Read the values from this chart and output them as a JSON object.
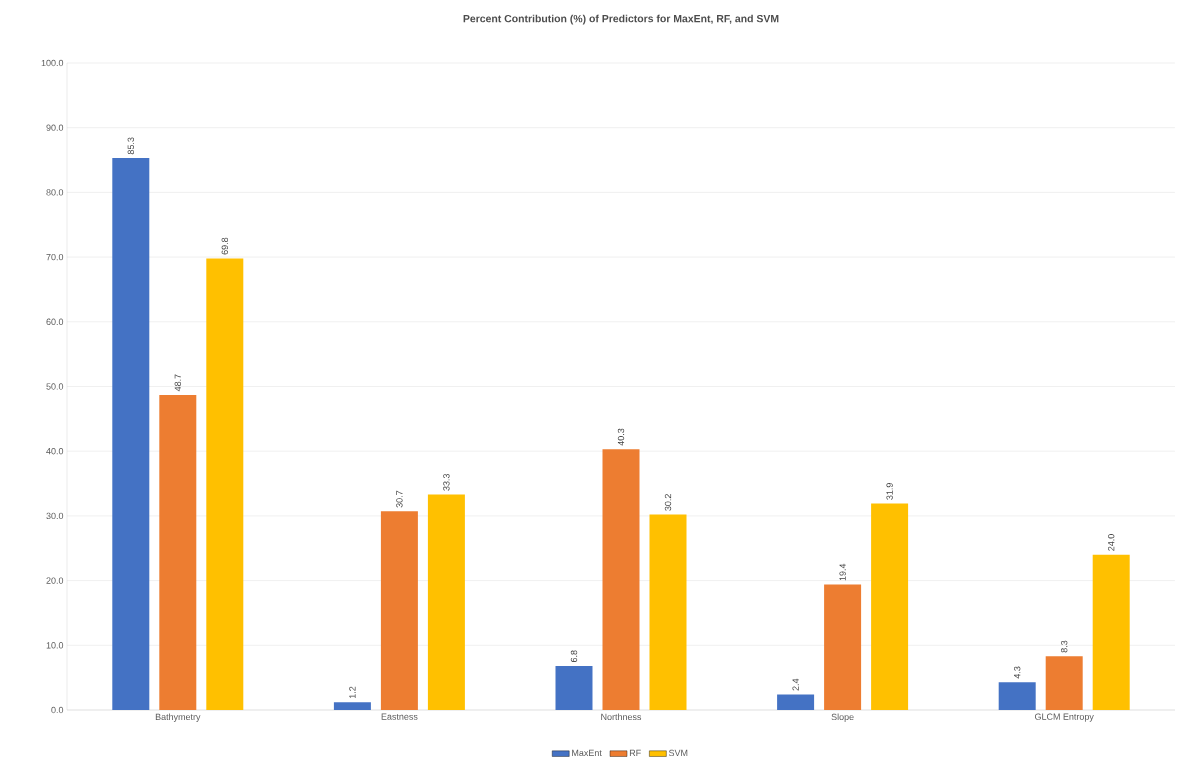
{
  "chart_data": {
    "type": "bar",
    "title": "Percent Contribution (%) of Predictors for MaxEnt, RF, and SVM",
    "categories": [
      "Bathymetry",
      "Eastness",
      "Northness",
      "Slope",
      "GLCM Entropy"
    ],
    "series": [
      {
        "name": "MaxEnt",
        "color": "#4472c4",
        "values": [
          85.3,
          1.2,
          6.8,
          2.4,
          4.3
        ],
        "value_labels": [
          "85.3",
          "1.2",
          "6.8",
          "2.4",
          "4.3"
        ]
      },
      {
        "name": "RF",
        "color": "#ed7d31",
        "values": [
          48.7,
          30.7,
          40.3,
          19.4,
          8.3
        ],
        "value_labels": [
          "48.7",
          "30.7",
          "40.3",
          "19.4",
          "8.3"
        ]
      },
      {
        "name": "SVM",
        "color": "#ffc000",
        "values": [
          69.8,
          33.3,
          30.2,
          31.9,
          24.0
        ],
        "value_labels": [
          "69.8",
          "33.3",
          "30.2",
          "31.9",
          "24.0"
        ]
      }
    ],
    "ylim": [
      0,
      100
    ],
    "yticks": [
      {
        "value": 0,
        "label": "0.0"
      },
      {
        "value": 10,
        "label": "10.0"
      },
      {
        "value": 20,
        "label": "20.0"
      },
      {
        "value": 30,
        "label": "30.0"
      },
      {
        "value": 40,
        "label": "40.0"
      },
      {
        "value": 50,
        "label": "50.0"
      },
      {
        "value": 60,
        "label": "60.0"
      },
      {
        "value": 70,
        "label": "70.0"
      },
      {
        "value": 80,
        "label": "80.0"
      },
      {
        "value": 90,
        "label": "90.0"
      },
      {
        "value": 100,
        "label": "100.0"
      }
    ],
    "grid": "y",
    "legend": "bottom"
  }
}
